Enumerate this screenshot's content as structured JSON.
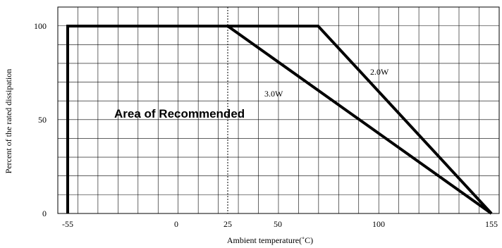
{
  "chart_data": {
    "type": "line",
    "xlabel": "Ambient temperature(˚C)",
    "ylabel": "Percent of the rated dissipation",
    "xlim": [
      -55,
      155
    ],
    "ylim": [
      0,
      100
    ],
    "x_ticks": [
      -55,
      0,
      25,
      50,
      100,
      155
    ],
    "x_tick_labels": [
      "-55",
      "0",
      "25",
      "50",
      "100",
      "155"
    ],
    "y_ticks": [
      0,
      50,
      100
    ],
    "y_tick_labels": [
      "0",
      "50",
      "100"
    ],
    "grid": true,
    "reference_line": {
      "x": 25,
      "style": "dotted"
    },
    "series": [
      {
        "name": "3.0W",
        "x": [
          -55,
          -55,
          25,
          155
        ],
        "y": [
          0,
          100,
          100,
          0
        ]
      },
      {
        "name": "2.0W",
        "x": [
          -55,
          -55,
          70,
          155
        ],
        "y": [
          0,
          100,
          100,
          0
        ]
      }
    ],
    "annotation": "Area of Recommended",
    "colors": {
      "line": "#000000",
      "grid": "#000000"
    }
  }
}
